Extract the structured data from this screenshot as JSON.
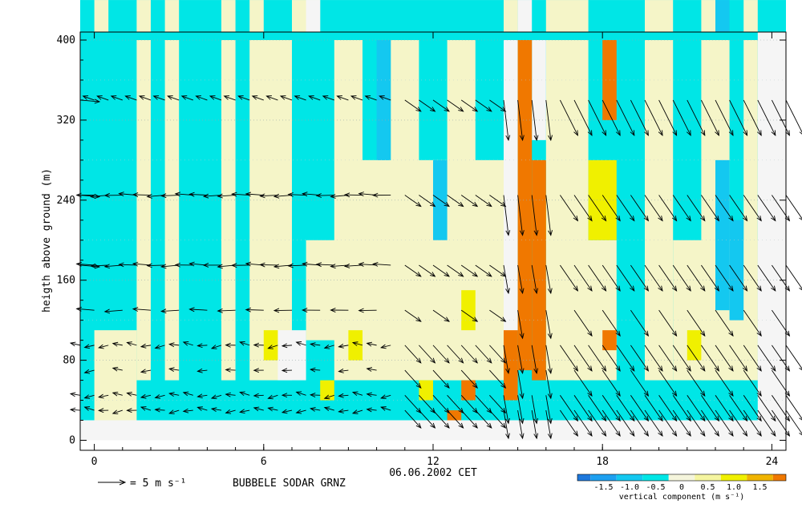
{
  "chart_data": {
    "type": "heatmap",
    "title": "BUBBELE SODAR GRNZ",
    "date_label": "06.06.2002 CET",
    "xlabel": "",
    "ylabel": "heigth above ground (m)",
    "x_ticks": [
      0,
      6,
      12,
      18,
      24
    ],
    "y_ticks": [
      0,
      80,
      160,
      240,
      320,
      400
    ],
    "xlim": [
      -0.5,
      24.5
    ],
    "ylim": [
      -10,
      408
    ],
    "grid": true,
    "reference_arrow": {
      "label": "= 5 m s⁻¹",
      "speed_ms": 5
    },
    "colorbar": {
      "title": "vertical component  (m s⁻¹)",
      "ticks": [
        "-1.5",
        "-1.0",
        "-0.5",
        "0",
        "0.5",
        "1.0",
        "1.5"
      ],
      "bins": [
        {
          "from": -2.0,
          "to": -1.75,
          "color": "#1e78dc"
        },
        {
          "from": -1.75,
          "to": -1.25,
          "color": "#1ea0f0"
        },
        {
          "from": -1.25,
          "to": -0.75,
          "color": "#14c8f0"
        },
        {
          "from": -0.75,
          "to": -0.25,
          "color": "#00e6e6"
        },
        {
          "from": -0.25,
          "to": 0.25,
          "color": "#f5f5dc"
        },
        {
          "from": 0.25,
          "to": 0.75,
          "color": "#f5f5a0"
        },
        {
          "from": 0.75,
          "to": 1.25,
          "color": "#f0f000"
        },
        {
          "from": 1.25,
          "to": 1.75,
          "color": "#f0b400"
        },
        {
          "from": 1.75,
          "to": 2.0,
          "color": "#f07800"
        }
      ]
    },
    "colors": {
      "cyan": "#00e6e6",
      "blue": "#14c8f0",
      "cream": "#f5f5c8",
      "white": "#f5f5f5",
      "yellow": "#f0f000",
      "orange": "#f07800"
    }
  }
}
